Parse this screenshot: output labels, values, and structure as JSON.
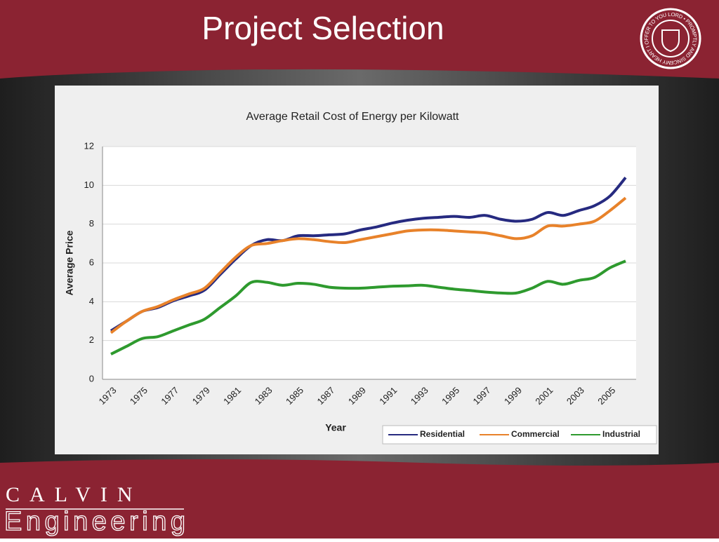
{
  "slide": {
    "title": "Project Selection",
    "seal_text": "MY HEART I OFFER TO YOU LORD • PROMPTLY AND SINCERELY",
    "brand_top": "CALVIN",
    "brand_bottom": "Engineering"
  },
  "chart_data": {
    "type": "line",
    "title": "Average Retail Cost of Energy per Kilowatt",
    "xlabel": "Year",
    "ylabel": "Average Price",
    "categories": [
      "1973",
      null,
      "1975",
      null,
      "1977",
      null,
      "1979",
      null,
      "1981",
      null,
      "1983",
      null,
      "1985",
      null,
      "1987",
      null,
      "1989",
      null,
      "1991",
      null,
      "1993",
      null,
      "1995",
      null,
      "1997",
      null,
      "1999",
      null,
      "2001",
      null,
      "2003",
      null,
      "2005",
      null
    ],
    "series": [
      {
        "name": "Residential",
        "color": "#262a80",
        "values": [
          2.5,
          3.0,
          3.5,
          3.7,
          4.05,
          4.3,
          4.6,
          5.4,
          6.2,
          6.9,
          7.2,
          7.15,
          7.4,
          7.4,
          7.45,
          7.5,
          7.7,
          7.85,
          8.05,
          8.2,
          8.3,
          8.35,
          8.4,
          8.35,
          8.45,
          8.25,
          8.15,
          8.25,
          8.6,
          8.45,
          8.7,
          8.95,
          9.45,
          10.4
        ]
      },
      {
        "name": "Commercial",
        "color": "#e8822a",
        "values": [
          2.4,
          3.0,
          3.5,
          3.75,
          4.1,
          4.4,
          4.7,
          5.5,
          6.3,
          6.9,
          7.0,
          7.15,
          7.25,
          7.2,
          7.1,
          7.05,
          7.2,
          7.35,
          7.5,
          7.65,
          7.7,
          7.7,
          7.65,
          7.6,
          7.55,
          7.4,
          7.25,
          7.4,
          7.9,
          7.9,
          8.0,
          8.15,
          8.7,
          9.35
        ]
      },
      {
        "name": "Industrial",
        "color": "#2e9a2e",
        "values": [
          1.3,
          1.7,
          2.1,
          2.2,
          2.5,
          2.8,
          3.1,
          3.7,
          4.3,
          5.0,
          5.0,
          4.85,
          4.95,
          4.9,
          4.75,
          4.7,
          4.7,
          4.75,
          4.8,
          4.82,
          4.85,
          4.75,
          4.65,
          4.58,
          4.5,
          4.45,
          4.45,
          4.7,
          5.05,
          4.9,
          5.1,
          5.25,
          5.75,
          6.1
        ]
      }
    ],
    "ylim": [
      0,
      12
    ],
    "yticks": [
      0,
      2,
      4,
      6,
      8,
      10,
      12
    ],
    "grid": true,
    "legend": "bottom-right"
  }
}
